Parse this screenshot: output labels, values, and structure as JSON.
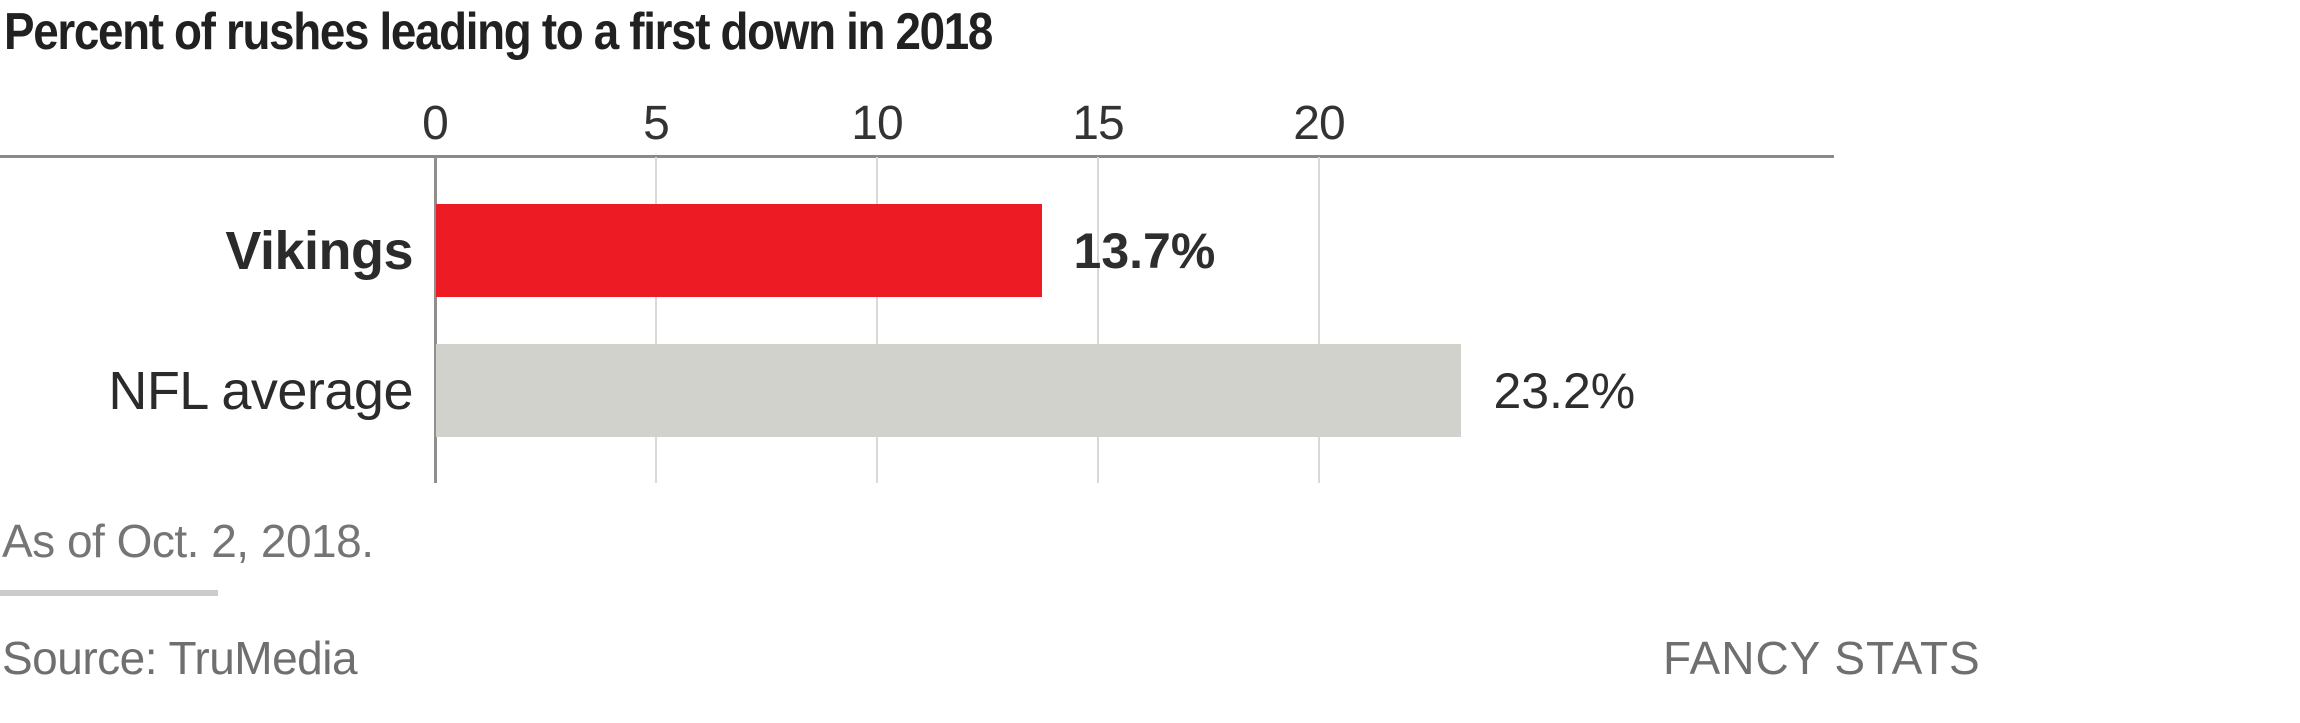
{
  "title": "Percent of rushes leading to a first down in 2018",
  "chart_data": {
    "type": "bar",
    "orientation": "horizontal",
    "title": "Percent of rushes leading to a first down in 2018",
    "categories": [
      "Vikings",
      "NFL average"
    ],
    "values": [
      13.7,
      23.2
    ],
    "value_labels": [
      "13.7%",
      "23.2%"
    ],
    "x_ticks": [
      "0",
      "5",
      "10",
      "15",
      "20"
    ],
    "x_tick_values": [
      0,
      5,
      10,
      15,
      20
    ],
    "xlim": [
      0,
      31.7
    ],
    "grid": true,
    "legend": "none",
    "bar_colors": [
      "#ed1b24",
      "#d2d2cd"
    ],
    "category_emphasis": [
      "bold",
      "normal"
    ]
  },
  "footnote": "As of Oct. 2, 2018.",
  "source": "Source: TruMedia",
  "credit": "FANCY STATS"
}
